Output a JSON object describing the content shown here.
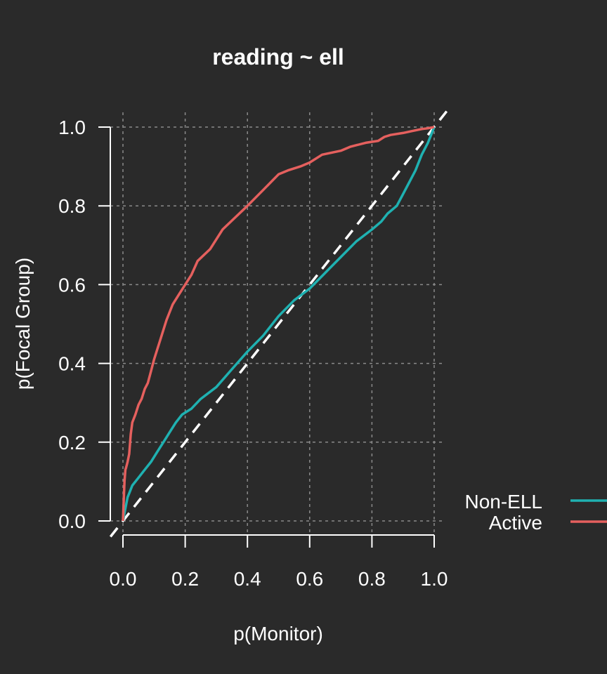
{
  "chart_data": {
    "type": "line",
    "title": "reading ~ ell",
    "xlabel": "p(Monitor)",
    "ylabel": "p(Focal Group)",
    "xlim": [
      0,
      1
    ],
    "ylim": [
      0,
      1
    ],
    "xticks": [
      "0.0",
      "0.2",
      "0.4",
      "0.6",
      "0.8",
      "1.0"
    ],
    "yticks": [
      "0.0",
      "0.2",
      "0.4",
      "0.6",
      "0.8",
      "1.0"
    ],
    "grid": true,
    "legend_position": "right",
    "reference_line": {
      "style": "dashed",
      "color": "#ffffff",
      "from": [
        0,
        0
      ],
      "to": [
        1,
        1
      ]
    },
    "series": [
      {
        "name": "Non-ELL",
        "color": "#1fb1b1",
        "x": [
          0,
          0.005,
          0.01,
          0.015,
          0.02,
          0.03,
          0.05,
          0.07,
          0.09,
          0.11,
          0.13,
          0.15,
          0.17,
          0.19,
          0.22,
          0.25,
          0.3,
          0.35,
          0.4,
          0.45,
          0.5,
          0.55,
          0.6,
          0.65,
          0.7,
          0.75,
          0.8,
          0.83,
          0.85,
          0.88,
          0.9,
          0.92,
          0.94,
          0.96,
          0.98,
          0.99,
          1.0
        ],
        "values": [
          0,
          0.02,
          0.04,
          0.06,
          0.07,
          0.09,
          0.11,
          0.13,
          0.15,
          0.175,
          0.2,
          0.225,
          0.25,
          0.27,
          0.285,
          0.31,
          0.34,
          0.385,
          0.43,
          0.47,
          0.52,
          0.56,
          0.59,
          0.63,
          0.67,
          0.71,
          0.74,
          0.76,
          0.78,
          0.8,
          0.83,
          0.86,
          0.89,
          0.93,
          0.96,
          0.98,
          1.0
        ]
      },
      {
        "name": "Active",
        "color": "#e5605e",
        "x": [
          0,
          0.003,
          0.005,
          0.008,
          0.01,
          0.015,
          0.02,
          0.025,
          0.03,
          0.04,
          0.05,
          0.06,
          0.07,
          0.08,
          0.09,
          0.1,
          0.12,
          0.14,
          0.16,
          0.18,
          0.2,
          0.22,
          0.24,
          0.28,
          0.32,
          0.36,
          0.4,
          0.45,
          0.5,
          0.53,
          0.57,
          0.6,
          0.64,
          0.7,
          0.73,
          0.78,
          0.82,
          0.84,
          0.86,
          0.9,
          0.93,
          0.96,
          0.98,
          1.0
        ],
        "values": [
          0,
          0.06,
          0.1,
          0.13,
          0.135,
          0.15,
          0.17,
          0.22,
          0.25,
          0.27,
          0.295,
          0.31,
          0.335,
          0.35,
          0.38,
          0.41,
          0.46,
          0.51,
          0.55,
          0.575,
          0.6,
          0.625,
          0.66,
          0.69,
          0.74,
          0.77,
          0.8,
          0.84,
          0.88,
          0.89,
          0.9,
          0.91,
          0.93,
          0.94,
          0.95,
          0.96,
          0.965,
          0.975,
          0.98,
          0.985,
          0.99,
          0.995,
          0.997,
          1.0
        ]
      }
    ]
  }
}
